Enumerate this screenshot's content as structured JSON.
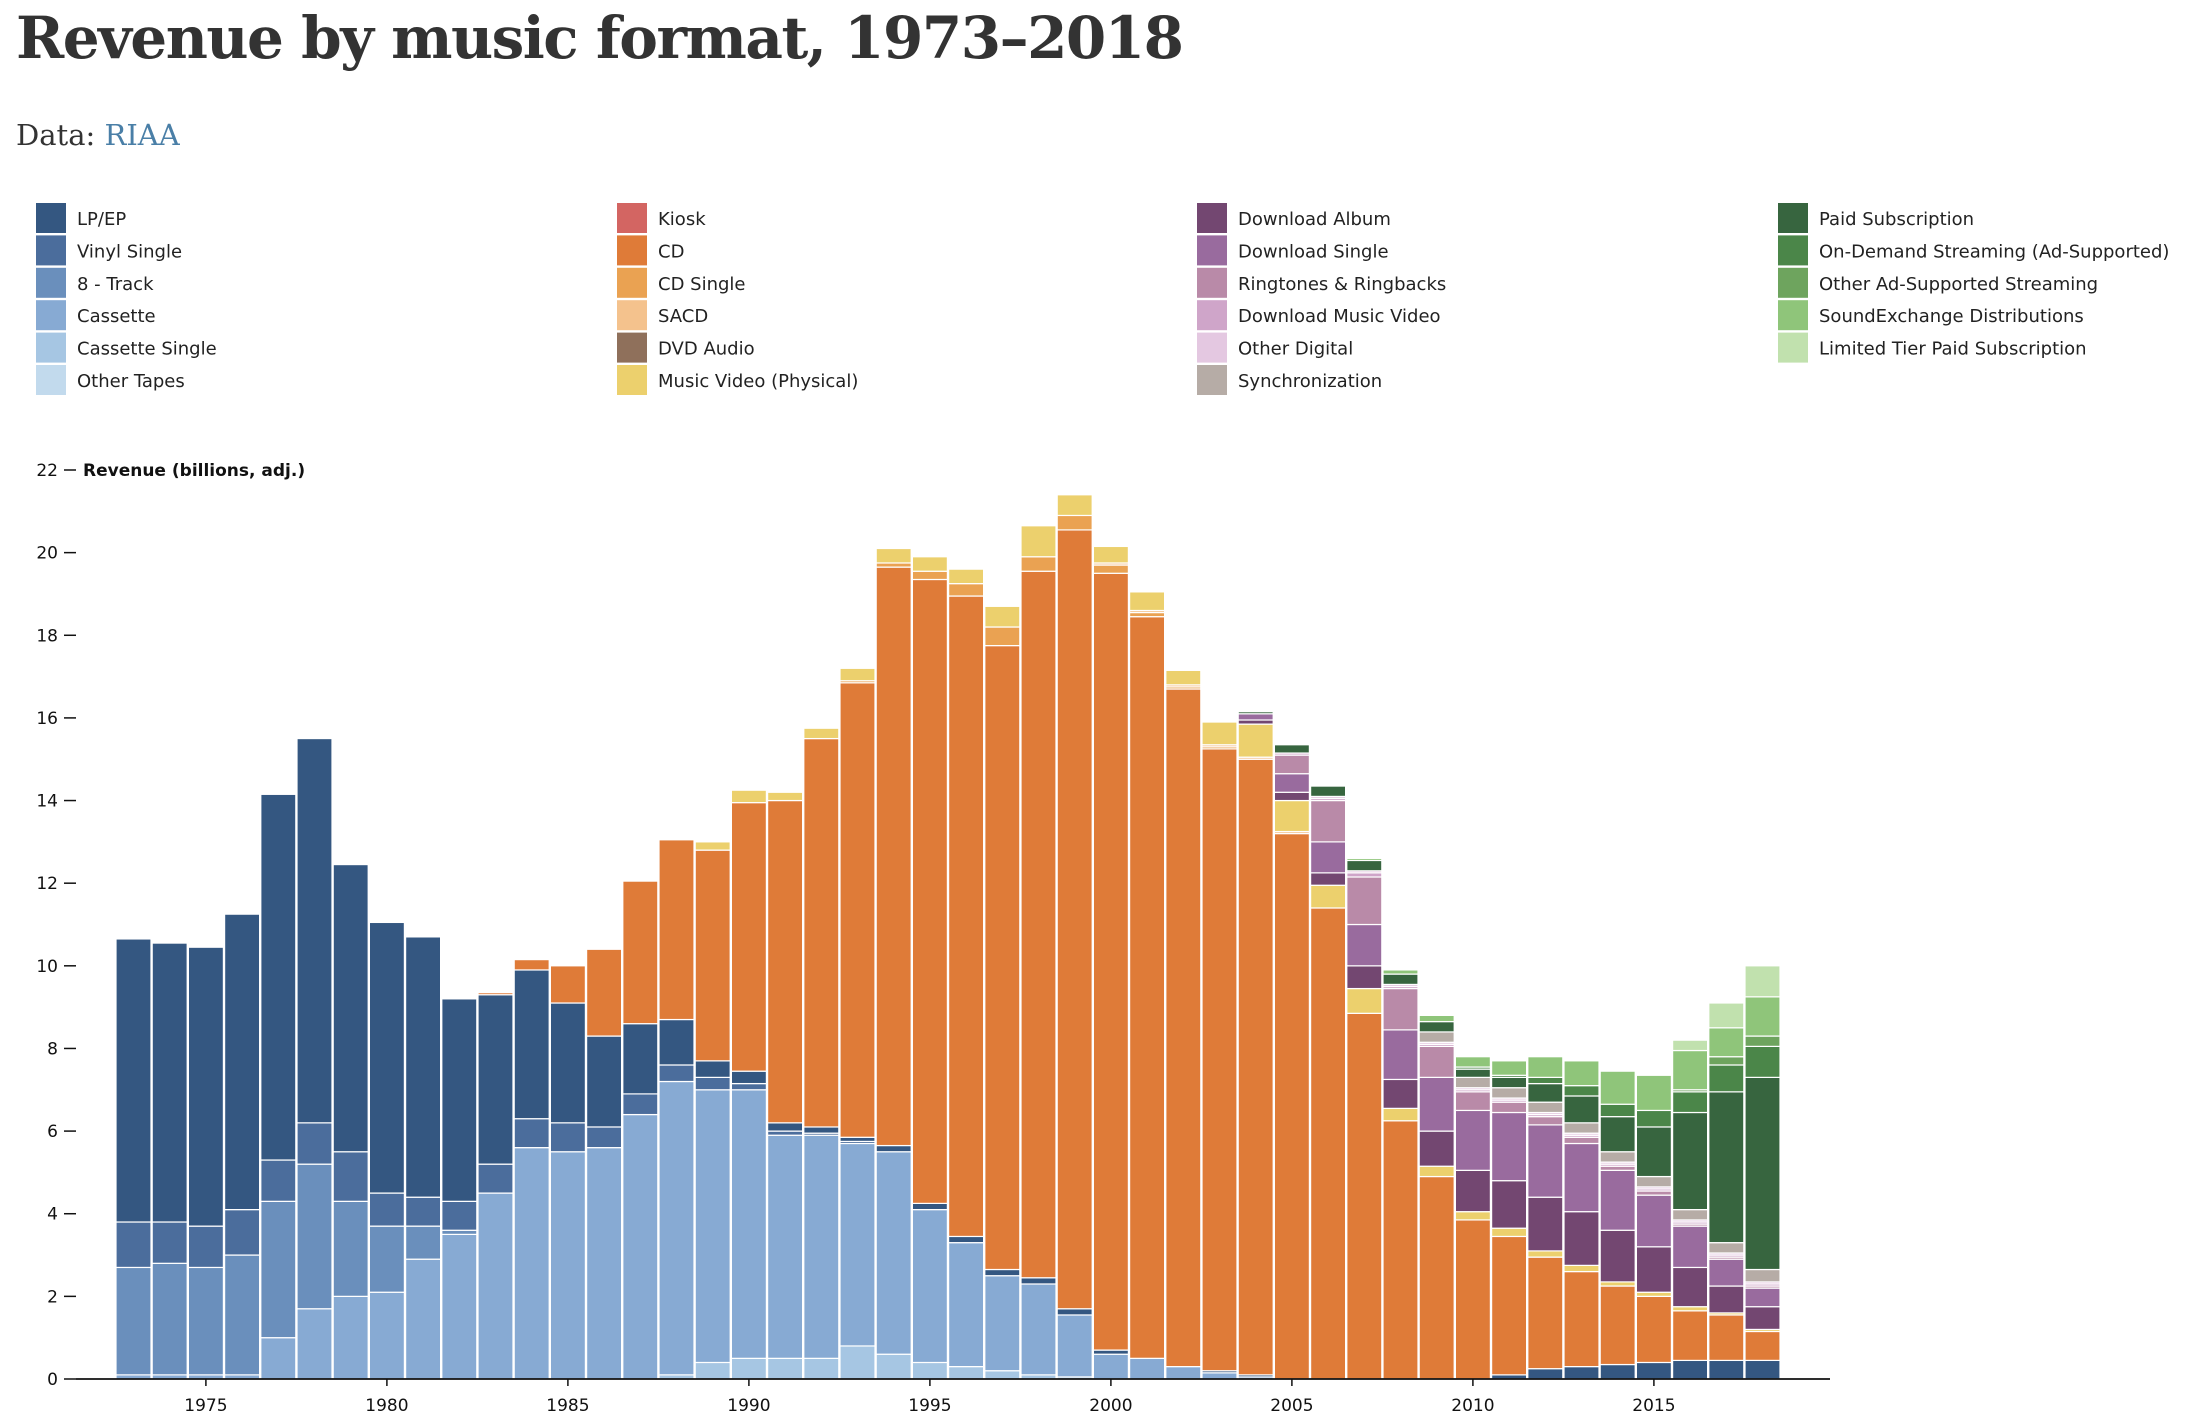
{
  "page": {
    "title": "Revenue by music format, 1973–2018",
    "source_prefix": "Data: ",
    "source_link": "RIAA"
  },
  "chart_data": {
    "type": "bar",
    "stacked": true,
    "title": "Revenue by music format, 1973–2018",
    "xlabel": "",
    "ylabel": "Revenue (billions, adj.)",
    "ylim": [
      0,
      22
    ],
    "yticks": [
      0,
      2,
      4,
      6,
      8,
      10,
      12,
      14,
      16,
      18,
      20,
      22
    ],
    "xticks": [
      1975,
      1980,
      1985,
      1990,
      1995,
      2000,
      2005,
      2010,
      2015
    ],
    "legend_position": "top",
    "grid": false,
    "categories": [
      1973,
      1974,
      1975,
      1976,
      1977,
      1978,
      1979,
      1980,
      1981,
      1982,
      1983,
      1984,
      1985,
      1986,
      1987,
      1988,
      1989,
      1990,
      1991,
      1992,
      1993,
      1994,
      1995,
      1996,
      1997,
      1998,
      1999,
      2000,
      2001,
      2002,
      2003,
      2004,
      2005,
      2006,
      2007,
      2008,
      2009,
      2010,
      2011,
      2012,
      2013,
      2014,
      2015,
      2016,
      2017,
      2018
    ],
    "series": [
      {
        "name": "Other Tapes",
        "color": "#c2daed",
        "values": [
          0,
          0,
          0,
          0,
          0,
          0,
          0,
          0,
          0,
          0,
          0,
          0,
          0,
          0,
          0,
          0,
          0,
          0,
          0,
          0,
          0,
          0,
          0,
          0,
          0,
          0,
          0,
          0,
          0,
          0,
          0,
          0,
          0,
          0,
          0,
          0,
          0,
          0,
          0,
          0,
          0,
          0,
          0,
          0,
          0,
          0
        ]
      },
      {
        "name": "Cassette Single",
        "color": "#a6c6e3",
        "values": [
          0,
          0,
          0,
          0,
          0,
          0,
          0,
          0,
          0,
          0,
          0,
          0,
          0,
          0,
          0,
          0.1,
          0.4,
          0.5,
          0.5,
          0.5,
          0.8,
          0.6,
          0.4,
          0.3,
          0.2,
          0.1,
          0.05,
          0,
          0,
          0,
          0,
          0,
          0,
          0,
          0,
          0,
          0,
          0,
          0,
          0,
          0,
          0,
          0,
          0,
          0,
          0
        ]
      },
      {
        "name": "Cassette",
        "color": "#87aad3",
        "values": [
          0.1,
          0.1,
          0.1,
          0.1,
          1,
          1.7,
          2,
          2.1,
          2.9,
          3.5,
          4.5,
          5.6,
          5.5,
          5.6,
          6.4,
          7.1,
          6.6,
          6.5,
          5.4,
          5.4,
          4.9,
          4.9,
          3.7,
          3,
          2.3,
          2.2,
          1.5,
          0.6,
          0.5,
          0.3,
          0.15,
          0.05,
          0,
          0,
          0,
          0,
          0,
          0,
          0,
          0,
          0,
          0,
          0,
          0,
          0,
          0
        ]
      },
      {
        "name": "8 - Track",
        "color": "#6a8fbc",
        "values": [
          2.6,
          2.7,
          2.6,
          2.9,
          3.3,
          3.5,
          2.3,
          1.6,
          0.8,
          0.1,
          0,
          0,
          0,
          0,
          0,
          0,
          0,
          0,
          0,
          0,
          0,
          0,
          0,
          0,
          0,
          0,
          0,
          0,
          0,
          0,
          0,
          0,
          0,
          0,
          0,
          0,
          0,
          0,
          0,
          0,
          0,
          0,
          0,
          0,
          0,
          0
        ]
      },
      {
        "name": "Vinyl Single",
        "color": "#4b6d9c",
        "values": [
          1.1,
          1,
          1,
          1.1,
          1,
          1,
          1.2,
          0.8,
          0.7,
          0.7,
          0.7,
          0.7,
          0.7,
          0.5,
          0.5,
          0.4,
          0.3,
          0.15,
          0.1,
          0.05,
          0.05,
          0,
          0,
          0,
          0,
          0,
          0,
          0,
          0,
          0,
          0,
          0,
          0,
          0,
          0,
          0,
          0,
          0,
          0,
          0,
          0,
          0,
          0,
          0,
          0,
          0
        ]
      },
      {
        "name": "LP/EP",
        "color": "#345781",
        "values": [
          6.85,
          6.75,
          6.75,
          7.15,
          8.85,
          9.3,
          6.95,
          6.55,
          6.3,
          4.9,
          4.1,
          3.6,
          2.9,
          2.2,
          1.7,
          1.1,
          0.4,
          0.3,
          0.2,
          0.15,
          0.1,
          0.15,
          0.15,
          0.15,
          0.15,
          0.15,
          0.15,
          0.1,
          0,
          0,
          0.05,
          0.05,
          0,
          0,
          0,
          0,
          0,
          0,
          0.1,
          0.25,
          0.3,
          0.35,
          0.4,
          0.45,
          0.45,
          0.45
        ]
      },
      {
        "name": "Kiosk",
        "color": "#d36562",
        "values": [
          0,
          0,
          0,
          0,
          0,
          0,
          0,
          0,
          0,
          0,
          0,
          0,
          0,
          0,
          0,
          0,
          0,
          0,
          0,
          0,
          0,
          0,
          0,
          0,
          0,
          0,
          0,
          0,
          0,
          0,
          0,
          0,
          0,
          0,
          0,
          0,
          0,
          0,
          0,
          0,
          0,
          0,
          0,
          0,
          0,
          0
        ]
      },
      {
        "name": "CD",
        "color": "#df7b38",
        "values": [
          0,
          0,
          0,
          0,
          0,
          0,
          0,
          0,
          0,
          0,
          0.05,
          0.25,
          0.9,
          2.1,
          3.45,
          4.35,
          5.1,
          6.5,
          7.8,
          9.4,
          11,
          14,
          15.1,
          15.5,
          15.1,
          17.1,
          18.85,
          18.8,
          17.95,
          16.4,
          15.05,
          14.9,
          13.2,
          11.4,
          8.85,
          6.25,
          4.9,
          3.85,
          3.35,
          2.7,
          2.3,
          1.9,
          1.6,
          1.2,
          1.1,
          0.7
        ]
      },
      {
        "name": "CD Single",
        "color": "#eaa252",
        "values": [
          0,
          0,
          0,
          0,
          0,
          0,
          0,
          0,
          0,
          0,
          0,
          0,
          0,
          0,
          0,
          0,
          0,
          0,
          0,
          0,
          0.05,
          0.1,
          0.2,
          0.3,
          0.45,
          0.35,
          0.35,
          0.2,
          0.1,
          0.05,
          0.05,
          0,
          0,
          0,
          0,
          0,
          0,
          0,
          0,
          0,
          0,
          0,
          0,
          0,
          0,
          0
        ]
      },
      {
        "name": "SACD",
        "color": "#f4c28d",
        "values": [
          0,
          0,
          0,
          0,
          0,
          0,
          0,
          0,
          0,
          0,
          0,
          0,
          0,
          0,
          0,
          0,
          0,
          0,
          0,
          0,
          0,
          0,
          0,
          0,
          0,
          0,
          0,
          0.05,
          0.05,
          0.05,
          0.05,
          0.05,
          0.05,
          0,
          0,
          0,
          0,
          0,
          0,
          0,
          0,
          0,
          0,
          0,
          0,
          0
        ]
      },
      {
        "name": "DVD Audio",
        "color": "#8f705b",
        "values": [
          0,
          0,
          0,
          0,
          0,
          0,
          0,
          0,
          0,
          0,
          0,
          0,
          0,
          0,
          0,
          0,
          0,
          0,
          0,
          0,
          0,
          0,
          0,
          0,
          0,
          0,
          0,
          0,
          0,
          0,
          0,
          0,
          0,
          0,
          0,
          0,
          0,
          0,
          0,
          0,
          0,
          0,
          0,
          0,
          0,
          0
        ]
      },
      {
        "name": "Music Video (Physical)",
        "color": "#ecd06d",
        "values": [
          0,
          0,
          0,
          0,
          0,
          0,
          0,
          0,
          0,
          0,
          0,
          0,
          0,
          0,
          0,
          0,
          0.2,
          0.3,
          0.2,
          0.25,
          0.3,
          0.35,
          0.35,
          0.35,
          0.5,
          0.75,
          0.5,
          0.4,
          0.45,
          0.35,
          0.55,
          0.8,
          0.75,
          0.55,
          0.6,
          0.3,
          0.25,
          0.2,
          0.2,
          0.15,
          0.15,
          0.1,
          0.1,
          0.1,
          0.05,
          0.05
        ]
      },
      {
        "name": "Download Album",
        "color": "#734771",
        "values": [
          0,
          0,
          0,
          0,
          0,
          0,
          0,
          0,
          0,
          0,
          0,
          0,
          0,
          0,
          0,
          0,
          0,
          0,
          0,
          0,
          0,
          0,
          0,
          0,
          0,
          0,
          0,
          0,
          0,
          0,
          0,
          0.1,
          0.2,
          0.3,
          0.55,
          0.7,
          0.85,
          1,
          1.15,
          1.3,
          1.3,
          1.25,
          1.1,
          0.95,
          0.65,
          0.55
        ]
      },
      {
        "name": "Download Single",
        "color": "#996b9e",
        "values": [
          0,
          0,
          0,
          0,
          0,
          0,
          0,
          0,
          0,
          0,
          0,
          0,
          0,
          0,
          0,
          0,
          0,
          0,
          0,
          0,
          0,
          0,
          0,
          0,
          0,
          0,
          0,
          0,
          0,
          0,
          0,
          0.15,
          0.45,
          0.75,
          1,
          1.2,
          1.3,
          1.45,
          1.65,
          1.75,
          1.65,
          1.45,
          1.25,
          1,
          0.65,
          0.45
        ]
      },
      {
        "name": "Ringtones & Ringbacks",
        "color": "#b98aa8",
        "values": [
          0,
          0,
          0,
          0,
          0,
          0,
          0,
          0,
          0,
          0,
          0,
          0,
          0,
          0,
          0,
          0,
          0,
          0,
          0,
          0,
          0,
          0,
          0,
          0,
          0,
          0,
          0,
          0,
          0,
          0,
          0,
          0,
          0.45,
          1,
          1.15,
          1,
          0.75,
          0.45,
          0.25,
          0.2,
          0.15,
          0.1,
          0.1,
          0.05,
          0.05,
          0.05
        ]
      },
      {
        "name": "Download Music Video",
        "color": "#cfa5c9",
        "values": [
          0,
          0,
          0,
          0,
          0,
          0,
          0,
          0,
          0,
          0,
          0,
          0,
          0,
          0,
          0,
          0,
          0,
          0,
          0,
          0,
          0,
          0,
          0,
          0,
          0,
          0,
          0,
          0,
          0,
          0,
          0,
          0,
          0.05,
          0.05,
          0.1,
          0.05,
          0.05,
          0.05,
          0.05,
          0.05,
          0.05,
          0.05,
          0.05,
          0.05,
          0.05,
          0.05
        ]
      },
      {
        "name": "Other Digital",
        "color": "#e4c8e1",
        "values": [
          0,
          0,
          0,
          0,
          0,
          0,
          0,
          0,
          0,
          0,
          0,
          0,
          0,
          0,
          0,
          0,
          0,
          0,
          0,
          0,
          0,
          0,
          0,
          0,
          0,
          0,
          0,
          0,
          0,
          0,
          0,
          0,
          0,
          0.05,
          0.05,
          0.05,
          0.05,
          0.05,
          0.05,
          0.05,
          0.05,
          0.05,
          0.05,
          0.05,
          0.05,
          0.05
        ]
      },
      {
        "name": "Synchronization",
        "color": "#b6aca6",
        "values": [
          0,
          0,
          0,
          0,
          0,
          0,
          0,
          0,
          0,
          0,
          0,
          0,
          0,
          0,
          0,
          0,
          0,
          0,
          0,
          0,
          0,
          0,
          0,
          0,
          0,
          0,
          0,
          0,
          0,
          0,
          0,
          0,
          0,
          0,
          0,
          0,
          0.25,
          0.25,
          0.25,
          0.25,
          0.25,
          0.25,
          0.25,
          0.25,
          0.25,
          0.3
        ]
      },
      {
        "name": "Paid Subscription",
        "color": "#37653f",
        "values": [
          0,
          0,
          0,
          0,
          0,
          0,
          0,
          0,
          0,
          0,
          0,
          0,
          0,
          0,
          0,
          0,
          0,
          0,
          0,
          0,
          0,
          0,
          0,
          0,
          0,
          0,
          0,
          0,
          0,
          0,
          0,
          0.05,
          0.2,
          0.25,
          0.25,
          0.25,
          0.25,
          0.2,
          0.25,
          0.45,
          0.65,
          0.85,
          1.2,
          2.35,
          3.65,
          4.65
        ]
      },
      {
        "name": "On-Demand Streaming (Ad-Supported)",
        "color": "#4b8649",
        "values": [
          0,
          0,
          0,
          0,
          0,
          0,
          0,
          0,
          0,
          0,
          0,
          0,
          0,
          0,
          0,
          0,
          0,
          0,
          0,
          0,
          0,
          0,
          0,
          0,
          0,
          0,
          0,
          0,
          0,
          0,
          0,
          0,
          0,
          0,
          0,
          0,
          0,
          0.05,
          0.05,
          0.15,
          0.25,
          0.3,
          0.4,
          0.5,
          0.65,
          0.75
        ]
      },
      {
        "name": "Other Ad-Supported Streaming",
        "color": "#6ea45e",
        "values": [
          0,
          0,
          0,
          0,
          0,
          0,
          0,
          0,
          0,
          0,
          0,
          0,
          0,
          0,
          0,
          0,
          0,
          0,
          0,
          0,
          0,
          0,
          0,
          0,
          0,
          0,
          0,
          0,
          0,
          0,
          0,
          0,
          0,
          0,
          0,
          0,
          0,
          0,
          0,
          0,
          0,
          0,
          0,
          0.05,
          0.2,
          0.25
        ]
      },
      {
        "name": "SoundExchange Distributions",
        "color": "#8fc57a",
        "values": [
          0,
          0,
          0,
          0,
          0,
          0,
          0,
          0,
          0,
          0,
          0,
          0,
          0,
          0,
          0,
          0,
          0,
          0,
          0,
          0,
          0,
          0,
          0,
          0,
          0,
          0,
          0,
          0,
          0,
          0,
          0,
          0,
          0,
          0,
          0.05,
          0.1,
          0.15,
          0.25,
          0.35,
          0.5,
          0.6,
          0.8,
          0.85,
          0.95,
          0.7,
          0.95
        ]
      },
      {
        "name": "Limited Tier Paid Subscription",
        "color": "#c1e1ae",
        "values": [
          0,
          0,
          0,
          0,
          0,
          0,
          0,
          0,
          0,
          0,
          0,
          0,
          0,
          0,
          0,
          0,
          0,
          0,
          0,
          0,
          0,
          0,
          0,
          0,
          0,
          0,
          0,
          0,
          0,
          0,
          0,
          0,
          0,
          0,
          0,
          0,
          0,
          0,
          0,
          0,
          0,
          0,
          0,
          0.25,
          0.6,
          0.75
        ]
      }
    ],
    "legend_columns": [
      [
        "LP/EP",
        "Vinyl Single",
        "8 - Track",
        "Cassette",
        "Cassette Single",
        "Other Tapes"
      ],
      [
        "Kiosk",
        "CD",
        "CD Single",
        "SACD",
        "DVD Audio",
        "Music Video (Physical)"
      ],
      [
        "Download Album",
        "Download Single",
        "Ringtones & Ringbacks",
        "Download Music Video",
        "Other Digital",
        "Synchronization"
      ],
      [
        "Paid Subscription",
        "On-Demand Streaming (Ad-Supported)",
        "Other Ad-Supported Streaming",
        "SoundExchange Distributions",
        "Limited Tier Paid Subscription"
      ]
    ]
  }
}
